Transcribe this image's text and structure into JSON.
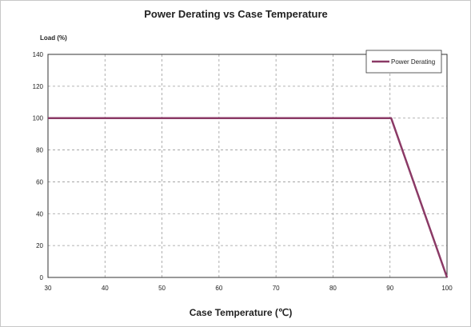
{
  "chart_data": {
    "type": "line",
    "title": "Power Derating vs Case Temperature",
    "xlabel": "Case Temperature (℃)",
    "ylabel": "Load (%)",
    "xlim": [
      30,
      100
    ],
    "ylim": [
      0,
      140
    ],
    "x_ticks": [
      "30",
      "40",
      "50",
      "60",
      "70",
      "80",
      "90",
      "100"
    ],
    "y_ticks": [
      "0",
      "20",
      "40",
      "60",
      "80",
      "100",
      "120",
      "140"
    ],
    "grid": true,
    "legend_position": "top-right",
    "series": [
      {
        "name": "Power Derating",
        "color": "#8b3a66",
        "x": [
          30,
          90.2,
          100
        ],
        "y": [
          100,
          100,
          0
        ]
      }
    ]
  }
}
